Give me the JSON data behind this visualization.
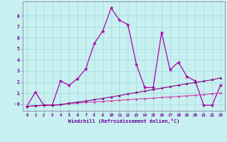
{
  "x": [
    0,
    1,
    2,
    3,
    4,
    5,
    6,
    7,
    8,
    9,
    10,
    11,
    12,
    13,
    14,
    15,
    16,
    17,
    18,
    19,
    20,
    21,
    22,
    23
  ],
  "line1": [
    -0.2,
    1.1,
    -0.1,
    -0.1,
    2.1,
    1.7,
    2.3,
    3.2,
    5.5,
    6.6,
    8.7,
    7.6,
    7.2,
    3.6,
    1.5,
    1.5,
    6.5,
    3.1,
    3.8,
    2.5,
    2.1,
    -0.1,
    -0.1,
    1.7
  ],
  "line2": [
    -0.2,
    -0.15,
    -0.1,
    -0.1,
    -0.05,
    0.05,
    0.1,
    0.15,
    0.2,
    0.25,
    0.3,
    0.35,
    0.4,
    0.45,
    0.5,
    0.55,
    0.6,
    0.65,
    0.7,
    0.75,
    0.8,
    0.85,
    0.95,
    1.0
  ],
  "line3": [
    -0.2,
    -0.15,
    -0.1,
    -0.1,
    -0.05,
    0.08,
    0.18,
    0.28,
    0.4,
    0.52,
    0.65,
    0.78,
    0.92,
    1.05,
    1.18,
    1.32,
    1.45,
    1.58,
    1.72,
    1.85,
    1.95,
    2.08,
    2.2,
    2.38
  ],
  "color1": "#aa00aa",
  "color2": "#cc44aa",
  "color3": "#880088",
  "bg_color": "#c8f0f0",
  "grid_color": "#a0d8d8",
  "xlabel": "Windchill (Refroidissement éolien,°C)",
  "ylim": [
    -0.6,
    9.3
  ],
  "xlim": [
    -0.5,
    23.5
  ],
  "yticks": [
    0,
    1,
    2,
    3,
    4,
    5,
    6,
    7,
    8
  ],
  "xticks": [
    0,
    1,
    2,
    3,
    4,
    5,
    6,
    7,
    8,
    9,
    10,
    11,
    12,
    13,
    14,
    15,
    16,
    17,
    18,
    19,
    20,
    21,
    22,
    23
  ]
}
